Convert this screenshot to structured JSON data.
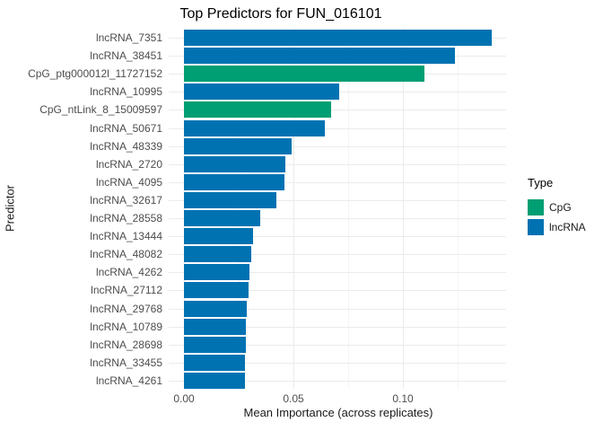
{
  "title": "Top Predictors for FUN_016101",
  "axes": {
    "x_label": "Mean Importance (across replicates)",
    "y_label": "Predictor",
    "x_ticks": [
      "0.00",
      "0.05",
      "0.10"
    ]
  },
  "legend": {
    "title": "Type",
    "items": [
      {
        "label": "CpG",
        "color": "#009E73"
      },
      {
        "label": "lncRNA",
        "color": "#0072B2"
      }
    ]
  },
  "colors": {
    "cpg": "#009E73",
    "lncrna": "#0072B2",
    "grid_major": "#EBEBEB",
    "grid_minor": "#F5F5F5",
    "axis_text": "#4D4D4D",
    "title_text": "#000000",
    "background": "#FFFFFF"
  },
  "chart_data": {
    "type": "bar",
    "orientation": "horizontal",
    "title": "Top Predictors for FUN_016101",
    "xlabel": "Mean Importance (across replicates)",
    "ylabel": "Predictor",
    "categories": [
      "lncRNA_7351",
      "lncRNA_38451",
      "CpG_ptg000012l_11727152",
      "lncRNA_10995",
      "CpG_ntLink_8_15009597",
      "lncRNA_50671",
      "lncRNA_48339",
      "lncRNA_2720",
      "lncRNA_4095",
      "lncRNA_32617",
      "lncRNA_28558",
      "lncRNA_13444",
      "lncRNA_48082",
      "lncRNA_4262",
      "lncRNA_27112",
      "lncRNA_29768",
      "lncRNA_10789",
      "lncRNA_28698",
      "lncRNA_33455",
      "lncRNA_4261"
    ],
    "values": [
      0.1406,
      0.1236,
      0.1096,
      0.0707,
      0.0671,
      0.0643,
      0.0491,
      0.0461,
      0.0457,
      0.0422,
      0.0347,
      0.0317,
      0.0309,
      0.0298,
      0.0295,
      0.0286,
      0.0283,
      0.0283,
      0.0277,
      0.0277
    ],
    "bar_types": [
      "lncRNA",
      "lncRNA",
      "CpG",
      "lncRNA",
      "CpG",
      "lncRNA",
      "lncRNA",
      "lncRNA",
      "lncRNA",
      "lncRNA",
      "lncRNA",
      "lncRNA",
      "lncRNA",
      "lncRNA",
      "lncRNA",
      "lncRNA",
      "lncRNA",
      "lncRNA",
      "lncRNA",
      "lncRNA"
    ],
    "type_colors": {
      "CpG": "#009E73",
      "lncRNA": "#0072B2"
    },
    "xlim": [
      -0.007,
      0.147
    ],
    "x_major_breaks": [
      0,
      0.05,
      0.1
    ],
    "x_minor_breaks": [
      0.025,
      0.075,
      0.125
    ],
    "x_tick_labels": [
      "0.00",
      "0.05",
      "0.10"
    ],
    "grid": true,
    "legend_title": "Type",
    "legend_position": "right"
  }
}
